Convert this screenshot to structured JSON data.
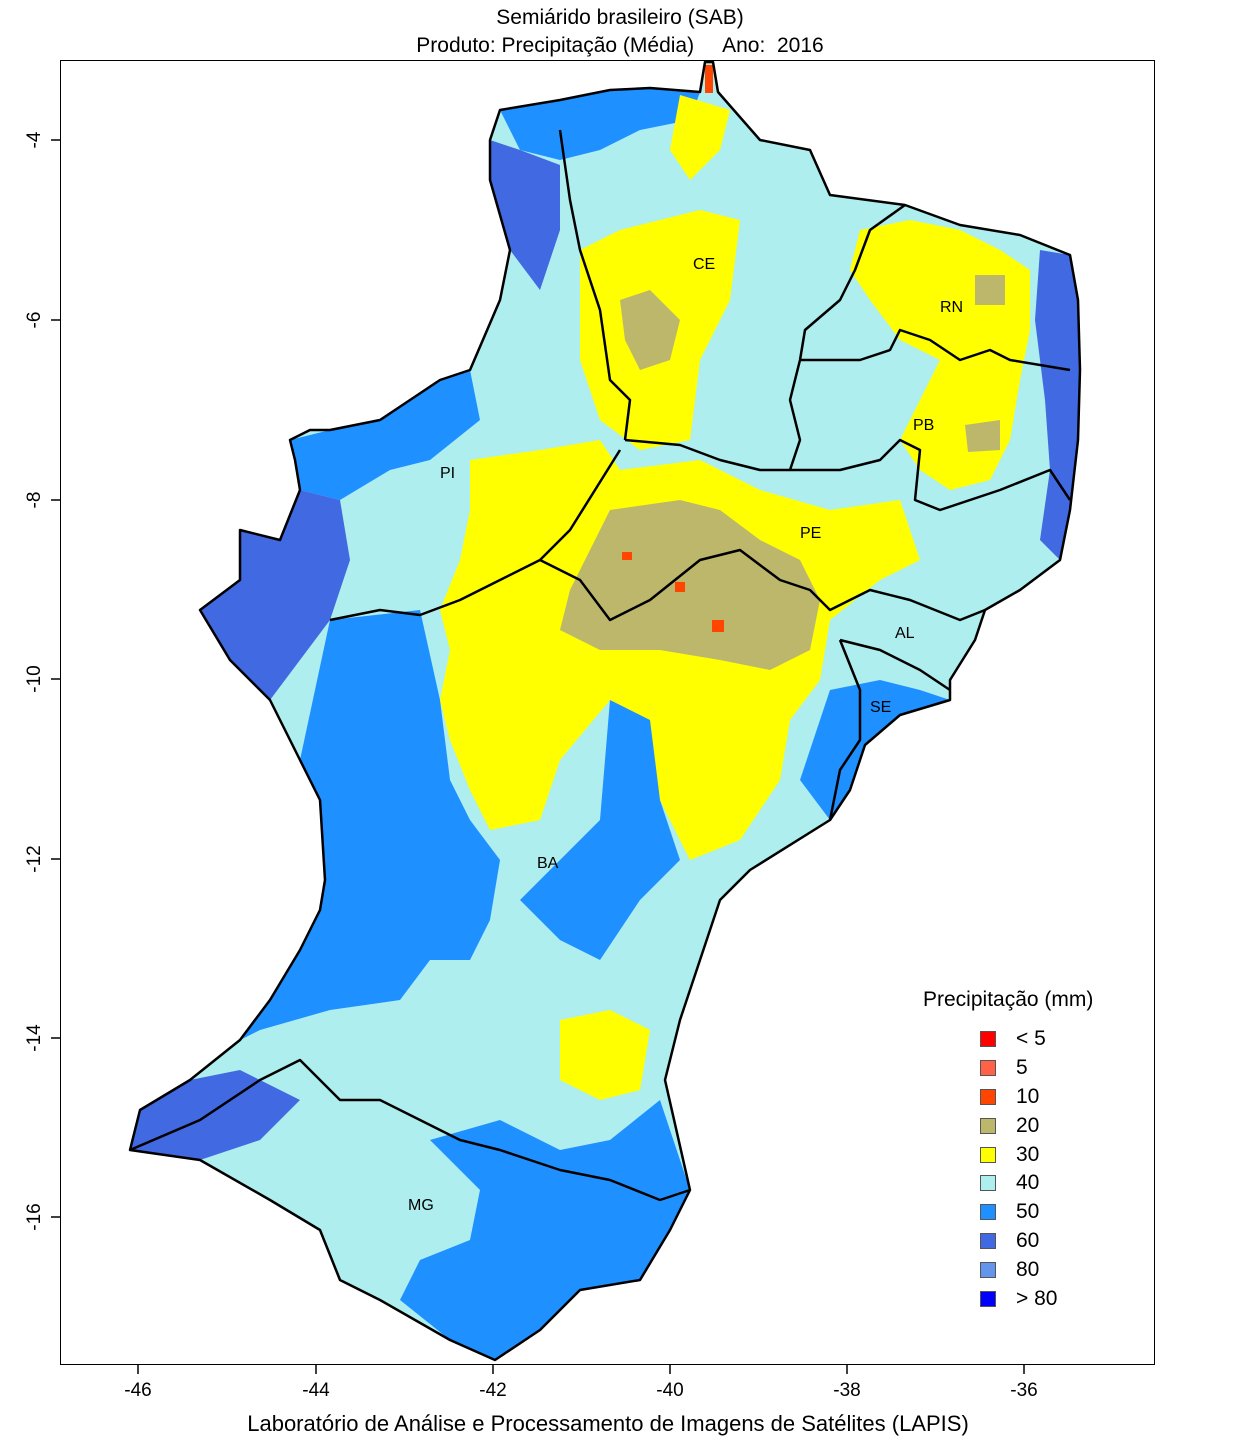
{
  "title": "Semiárido brasileiro (SAB)",
  "subtitle": "Produto: Precipitação (Média)     Ano:  2016",
  "footer": "Laboratório de Análise e Processamento de Imagens de Satélites (LAPIS)",
  "map": {
    "x_ticks": [
      "-46",
      "-44",
      "-42",
      "-40",
      "-38",
      "-36"
    ],
    "y_ticks": [
      "-4",
      "-6",
      "-8",
      "-10",
      "-12",
      "-14",
      "-16"
    ],
    "states": [
      "CE",
      "RN",
      "PB",
      "PI",
      "PE",
      "AL",
      "SE",
      "BA",
      "MG"
    ]
  },
  "legend": {
    "title": "Precipitação (mm)",
    "items": [
      {
        "label": "< 5",
        "color": "#ff0000"
      },
      {
        "label": "5",
        "color": "#ff6347"
      },
      {
        "label": "10",
        "color": "#ff4500"
      },
      {
        "label": "20",
        "color": "#bdb76b"
      },
      {
        "label": "30",
        "color": "#ffff00"
      },
      {
        "label": "40",
        "color": "#aeeeee"
      },
      {
        "label": "50",
        "color": "#1e90ff"
      },
      {
        "label": "60",
        "color": "#4169e1"
      },
      {
        "label": "80",
        "color": "#6495ed"
      },
      {
        "label": "> 80",
        "color": "#0000ff"
      }
    ]
  }
}
